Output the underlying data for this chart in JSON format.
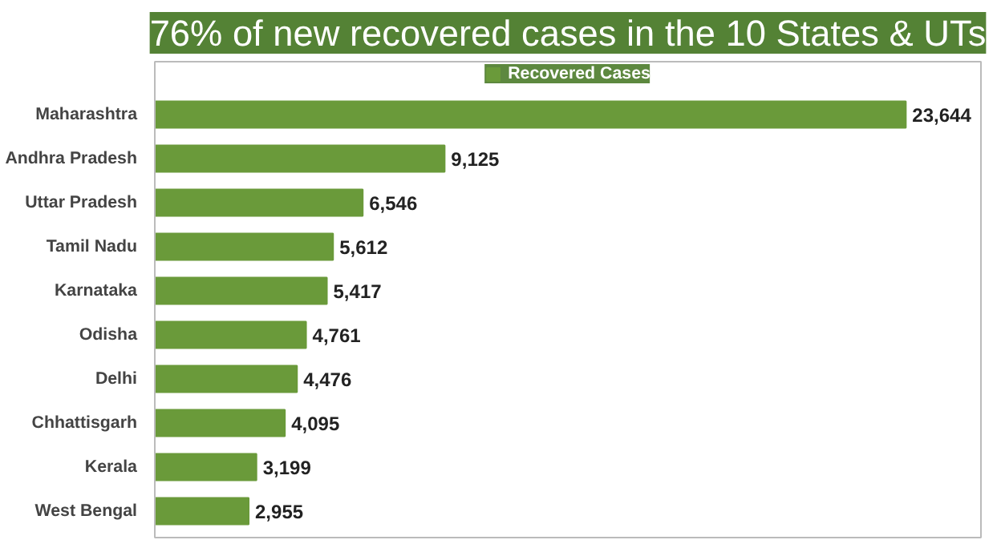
{
  "chart_data": {
    "type": "bar",
    "orientation": "horizontal",
    "title": "76% of new recovered cases in the 10 States & UTs",
    "categories": [
      "Maharashtra",
      "Andhra Pradesh",
      "Uttar Pradesh",
      "Tamil Nadu",
      "Karnataka",
      "Odisha",
      "Delhi",
      "Chhattisgarh",
      "Kerala",
      "West Bengal"
    ],
    "series": [
      {
        "name": "Recovered Cases",
        "color": "#6a9a3a",
        "values": [
          23644,
          9125,
          6546,
          5612,
          5417,
          4761,
          4476,
          4095,
          3199,
          2955
        ],
        "value_labels": [
          "23,644",
          "9,125",
          "6,546",
          "5,612",
          "5,417",
          "4,761",
          "4,476",
          "4,095",
          "3,199",
          "2,955"
        ]
      }
    ],
    "legend": "top",
    "tick_labels": "y",
    "grid": false
  }
}
